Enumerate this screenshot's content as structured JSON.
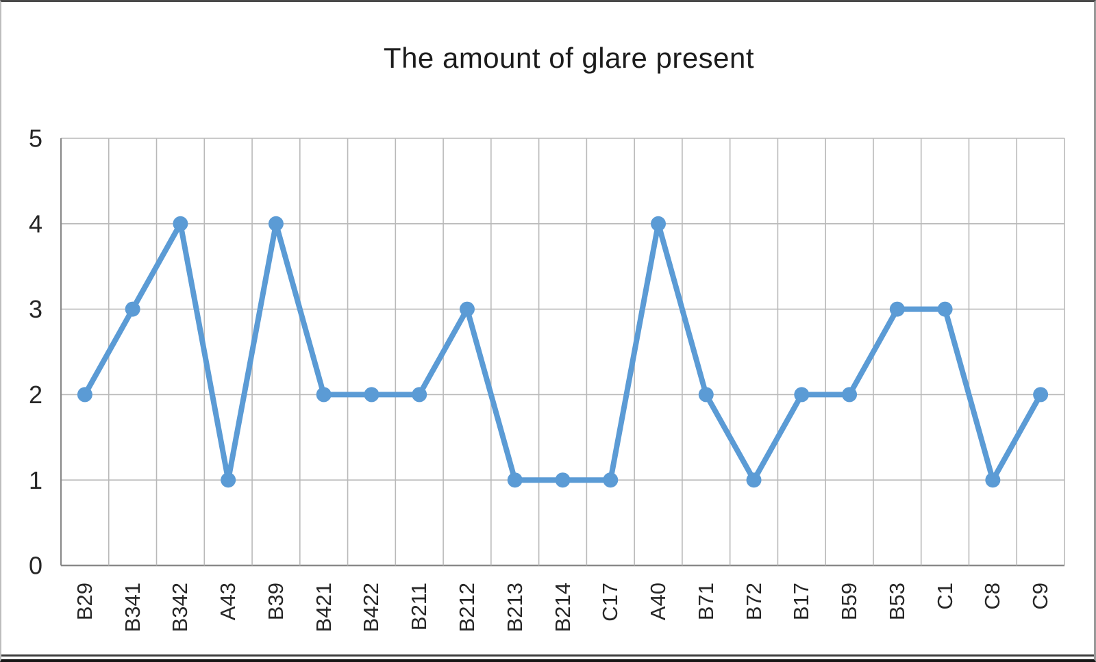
{
  "chart_data": {
    "type": "line",
    "title": "The amount of glare present",
    "categories": [
      "B29",
      "B341",
      "B342",
      "A43",
      "B39",
      "B421",
      "B422",
      "B211",
      "B212",
      "B213",
      "B214",
      "C17",
      "A40",
      "B71",
      "B72",
      "B17",
      "B59",
      "B53",
      "C1",
      "C8",
      "C9"
    ],
    "values": [
      2,
      3,
      4,
      1,
      4,
      2,
      2,
      2,
      3,
      1,
      1,
      1,
      4,
      2,
      1,
      2,
      2,
      3,
      3,
      1,
      2
    ],
    "xlabel": "",
    "ylabel": "",
    "ylim": [
      0,
      5
    ],
    "yticks": [
      0,
      1,
      2,
      3,
      4,
      5
    ],
    "grid": "both",
    "legend": "none"
  },
  "colors": {
    "line": "#5B9BD5",
    "marker": "#5B9BD5",
    "grid": "#b9b9b9",
    "axis": "#898989",
    "tick_label": "#262626",
    "title_text": "#1c1c1c",
    "background": "#ffffff"
  }
}
